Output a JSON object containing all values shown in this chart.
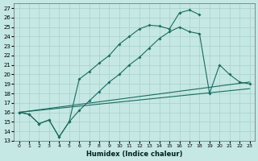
{
  "background_color": "#c5e8e4",
  "grid_color": "#a8d0cb",
  "line_color": "#1a6b60",
  "xlabel": "Humidex (Indice chaleur)",
  "xlim": [
    -0.5,
    23.5
  ],
  "ylim": [
    13,
    27.5
  ],
  "xticks": [
    0,
    1,
    2,
    3,
    4,
    5,
    6,
    7,
    8,
    9,
    10,
    11,
    12,
    13,
    14,
    15,
    16,
    17,
    18,
    19,
    20,
    21,
    22,
    23
  ],
  "yticks": [
    13,
    14,
    15,
    16,
    17,
    18,
    19,
    20,
    21,
    22,
    23,
    24,
    25,
    26,
    27
  ],
  "line1_x": [
    0,
    1,
    2,
    3,
    4,
    5,
    6,
    7,
    8,
    9,
    10,
    11,
    12,
    13,
    14,
    15,
    16,
    17,
    18
  ],
  "line1_y": [
    16,
    15.8,
    14.8,
    15.2,
    13.4,
    15.0,
    19.5,
    20.3,
    21.2,
    22.0,
    23.2,
    24.0,
    24.8,
    25.2,
    25.1,
    24.8,
    26.5,
    26.8,
    26.3
  ],
  "line2_x": [
    0,
    1,
    2,
    3,
    4,
    5,
    6,
    7,
    8,
    9,
    10,
    11,
    12,
    13,
    14,
    15,
    16,
    17,
    18,
    19,
    20,
    21,
    22,
    23
  ],
  "line2_y": [
    16,
    15.8,
    14.8,
    15.2,
    13.4,
    15.0,
    16.2,
    17.2,
    18.2,
    19.2,
    20.0,
    21.0,
    21.8,
    22.8,
    23.8,
    24.5,
    25.0,
    24.5,
    24.3,
    18.0,
    21.0,
    20.0,
    19.2,
    19.0
  ],
  "line3_x": [
    0,
    23
  ],
  "line3_y": [
    16.0,
    19.2
  ],
  "line4_x": [
    0,
    23
  ],
  "line4_y": [
    16.0,
    18.5
  ]
}
